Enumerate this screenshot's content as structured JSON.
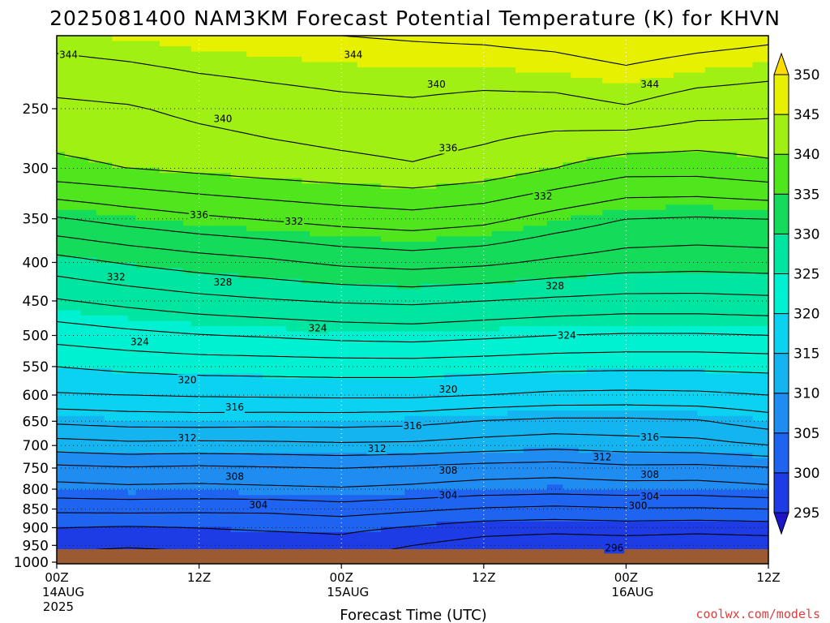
{
  "chart_data": {
    "type": "heatmap",
    "title": "2025081400 NAM3KM Forecast Potential Temperature (K) for KHVN",
    "xlabel": "Forecast Time (UTC)",
    "ylabel": "",
    "x_ticks": [
      {
        "hour": 0,
        "time": "00Z",
        "date": "14AUG",
        "year": "2025"
      },
      {
        "hour": 12,
        "time": "12Z",
        "date": "",
        "year": ""
      },
      {
        "hour": 24,
        "time": "00Z",
        "date": "15AUG",
        "year": ""
      },
      {
        "hour": 36,
        "time": "12Z",
        "date": "",
        "year": ""
      },
      {
        "hour": 48,
        "time": "00Z",
        "date": "16AUG",
        "year": ""
      },
      {
        "hour": 60,
        "time": "12Z",
        "date": "",
        "year": ""
      }
    ],
    "xlim": [
      0,
      60
    ],
    "y_ticks": [
      250,
      300,
      350,
      400,
      450,
      500,
      550,
      600,
      650,
      700,
      750,
      800,
      850,
      900,
      950,
      1000
    ],
    "ylim": [
      1005,
      200
    ],
    "y_scale": "log pressure (hPa)",
    "grid": true,
    "colorbar": {
      "levels": [
        295,
        300,
        305,
        310,
        315,
        320,
        325,
        330,
        335,
        340,
        345,
        350
      ],
      "colors": [
        "#1e14c8",
        "#1e3ce6",
        "#1e64f0",
        "#1e8cf0",
        "#14b4f0",
        "#0ad2f0",
        "#00f0d2",
        "#00e6a0",
        "#14dc5a",
        "#50e61e",
        "#a0f014",
        "#e6f000",
        "#ffdc00"
      ],
      "placement": "right"
    },
    "surface_color": "#9c5a32",
    "profile_knots_hour": [
      0,
      6,
      12,
      18,
      24,
      30,
      36,
      42,
      48,
      54,
      60
    ],
    "theta_profiles_K": [
      {
        "p": 1000,
        "theta": [
          297.2,
          296.8,
          297.0,
          297.5,
          297.8,
          296.5,
          295.5,
          295.0,
          295.2,
          295.0,
          295.2
        ]
      },
      {
        "p": 950,
        "theta": [
          298.5,
          298.2,
          298.5,
          298.8,
          299.2,
          298.0,
          297.0,
          296.5,
          296.8,
          296.5,
          296.8
        ]
      },
      {
        "p": 900,
        "theta": [
          300.0,
          299.8,
          300.0,
          300.3,
          300.5,
          299.8,
          299.0,
          298.8,
          299.0,
          298.8,
          299.0
        ]
      },
      {
        "p": 850,
        "theta": [
          302.5,
          302.6,
          302.5,
          302.5,
          303.0,
          302.4,
          301.8,
          301.5,
          301.8,
          301.8,
          302.0
        ]
      },
      {
        "p": 800,
        "theta": [
          305.2,
          305.5,
          305.4,
          305.6,
          305.8,
          305.5,
          305.0,
          304.8,
          305.0,
          305.0,
          305.5
        ]
      },
      {
        "p": 750,
        "theta": [
          307.5,
          307.8,
          307.6,
          307.8,
          308.0,
          307.6,
          307.2,
          307.0,
          307.5,
          307.4,
          307.8
        ]
      },
      {
        "p": 700,
        "theta": [
          311.0,
          311.4,
          311.3,
          311.4,
          311.6,
          311.5,
          311.0,
          310.6,
          311.0,
          311.2,
          312.0
        ]
      },
      {
        "p": 650,
        "theta": [
          314.4,
          314.8,
          314.9,
          314.8,
          314.8,
          314.6,
          313.9,
          313.5,
          313.5,
          313.8,
          315.0
        ]
      },
      {
        "p": 600,
        "theta": [
          317.8,
          318.0,
          318.2,
          318.3,
          318.4,
          318.4,
          318.0,
          317.6,
          317.5,
          317.6,
          318.0
        ]
      },
      {
        "p": 550,
        "theta": [
          320.0,
          320.5,
          320.8,
          320.9,
          321.0,
          321.0,
          320.8,
          320.5,
          320.4,
          320.4,
          320.6
        ]
      },
      {
        "p": 500,
        "theta": [
          322.8,
          323.4,
          323.9,
          324.2,
          324.6,
          324.8,
          324.4,
          324.0,
          323.8,
          323.8,
          324.0
        ]
      },
      {
        "p": 450,
        "theta": [
          325.8,
          326.6,
          327.3,
          327.8,
          328.2,
          328.4,
          328.0,
          327.6,
          327.3,
          327.3,
          327.5
        ]
      },
      {
        "p": 400,
        "theta": [
          329.2,
          330.2,
          331.0,
          331.6,
          332.4,
          332.8,
          332.4,
          331.6,
          331.0,
          330.8,
          331.0
        ]
      },
      {
        "p": 350,
        "theta": [
          333.8,
          334.8,
          335.6,
          336.2,
          336.8,
          337.2,
          336.6,
          335.2,
          334.0,
          333.8,
          334.0
        ]
      },
      {
        "p": 300,
        "theta": [
          339.5,
          340.0,
          340.5,
          341.0,
          341.4,
          341.8,
          341.2,
          340.0,
          338.8,
          338.8,
          339.5
        ]
      },
      {
        "p": 250,
        "theta": [
          341.5,
          341.8,
          342.5,
          343.0,
          343.4,
          343.6,
          343.2,
          343.2,
          343.8,
          342.8,
          342.5
        ]
      },
      {
        "p": 200,
        "theta": [
          344.8,
          345.2,
          345.6,
          345.8,
          346.0,
          346.2,
          346.4,
          346.8,
          347.5,
          347.0,
          346.5
        ]
      }
    ],
    "contour_interval_K": 2,
    "contour_labels": [
      {
        "label": "344",
        "hour": 1.0,
        "p": 212
      },
      {
        "label": "344",
        "hour": 25.0,
        "p": 212
      },
      {
        "label": "344",
        "hour": 50.0,
        "p": 232
      },
      {
        "label": "340",
        "hour": 32.0,
        "p": 232
      },
      {
        "label": "340",
        "hour": 14.0,
        "p": 258
      },
      {
        "label": "336",
        "hour": 33.0,
        "p": 282
      },
      {
        "label": "336",
        "hour": 12.0,
        "p": 346
      },
      {
        "label": "332",
        "hour": 41.0,
        "p": 327
      },
      {
        "label": "332",
        "hour": 20.0,
        "p": 353
      },
      {
        "label": "332",
        "hour": 5.0,
        "p": 418
      },
      {
        "label": "328",
        "hour": 14.0,
        "p": 425
      },
      {
        "label": "328",
        "hour": 42.0,
        "p": 430
      },
      {
        "label": "324",
        "hour": 7.0,
        "p": 510
      },
      {
        "label": "324",
        "hour": 22.0,
        "p": 489
      },
      {
        "label": "324",
        "hour": 43.0,
        "p": 500
      },
      {
        "label": "320",
        "hour": 11.0,
        "p": 573
      },
      {
        "label": "320",
        "hour": 33.0,
        "p": 590
      },
      {
        "label": "316",
        "hour": 15.0,
        "p": 623
      },
      {
        "label": "316",
        "hour": 30.0,
        "p": 659
      },
      {
        "label": "316",
        "hour": 50.0,
        "p": 683
      },
      {
        "label": "312",
        "hour": 11.0,
        "p": 684
      },
      {
        "label": "312",
        "hour": 27.0,
        "p": 707
      },
      {
        "label": "312",
        "hour": 46.0,
        "p": 725
      },
      {
        "label": "308",
        "hour": 15.0,
        "p": 770
      },
      {
        "label": "308",
        "hour": 33.0,
        "p": 756
      },
      {
        "label": "308",
        "hour": 50.0,
        "p": 765
      },
      {
        "label": "304",
        "hour": 17.0,
        "p": 840
      },
      {
        "label": "304",
        "hour": 33.0,
        "p": 815
      },
      {
        "label": "304",
        "hour": 50.0,
        "p": 818
      },
      {
        "label": "300",
        "hour": 49.0,
        "p": 842
      },
      {
        "label": "296",
        "hour": 47.0,
        "p": 957
      }
    ]
  },
  "credit": "coolwx.com/models"
}
